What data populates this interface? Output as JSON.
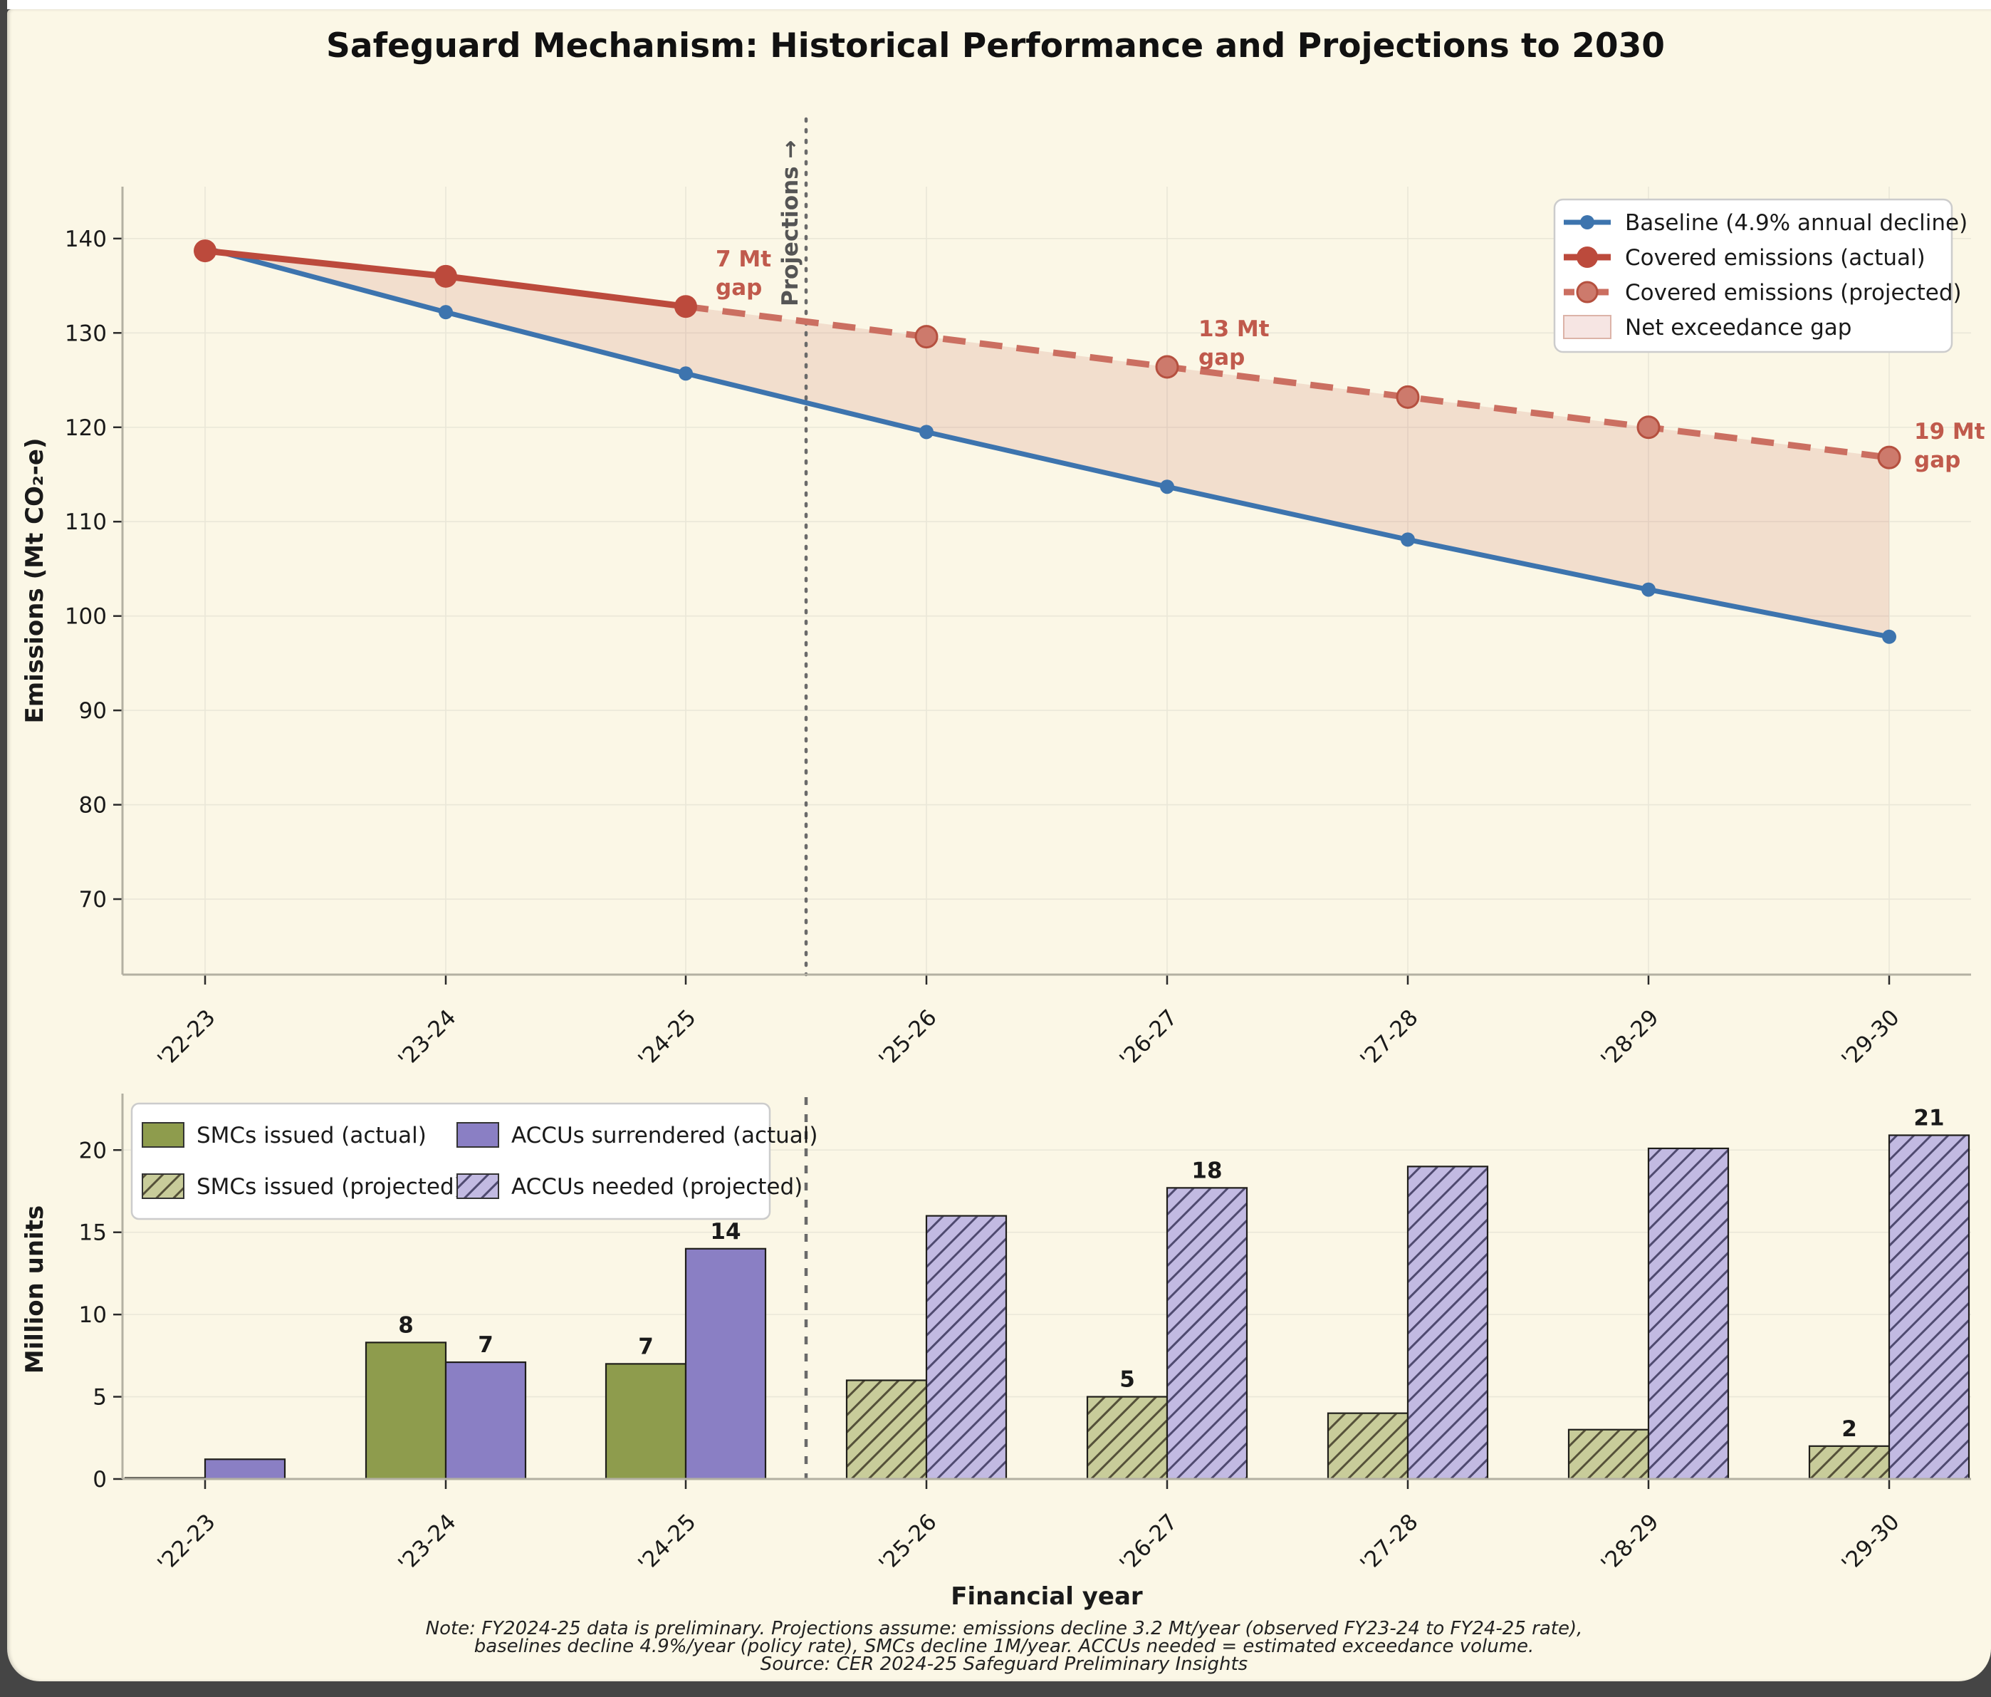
{
  "title": "Safeguard Mechanism: Historical Performance and Projections to 2030",
  "footer": {
    "line1": "Note: FY2024-25 data is preliminary. Projections assume: emissions decline 3.2 Mt/year (observed FY23-24 to FY24-25 rate),",
    "line2": "baselines decline 4.9%/year (policy rate), SMCs decline 1M/year. ACCUs needed = estimated exceedance volume.",
    "line3": "Source: CER 2024-25 Safeguard Preliminary Insights"
  },
  "colors": {
    "background": "#fbf7e6",
    "frame": "#454545",
    "top_strip": "#ffffff",
    "baseline_blue": "#3d74ae",
    "emissions_red": "#bc4a3c",
    "projected_red": "#cb6f61",
    "gap_fill": "rgba(188,74,60,0.14)",
    "smc_green": "#8e9c4d",
    "smc_green_projected": "#c8cc9a",
    "accu_purple": "#8a7fc4",
    "accu_purple_projected": "#c2bae2",
    "hatch_green": "#555139",
    "hatch_purple": "#4f4a70",
    "bar_edge": "#1f1e1a",
    "grid": "#eae7d8",
    "spine": "#b3b0a2",
    "tick": "#2a2a2a",
    "divider": "#6a6a6a",
    "annotation_red": "#c05a4c",
    "projections_gray": "#555555",
    "legend_bg": "#ffffff",
    "legend_border": "#cccccc",
    "text": "#1a1a1a"
  },
  "chart_data": [
    {
      "type": "line",
      "panel": "top",
      "ylabel": "Emissions (Mt CO₂-e)",
      "categories": [
        "'22-23",
        "'23-24",
        "'24-25",
        "'25-26",
        "'26-27",
        "'27-28",
        "'28-29",
        "'29-30"
      ],
      "ylim": [
        62,
        145.5
      ],
      "yticks": [
        70,
        80,
        90,
        100,
        110,
        120,
        130,
        140
      ],
      "grid": true,
      "legend_position": "upper right",
      "series": [
        {
          "name": "Baseline (4.9% annual decline)",
          "line_style": "solid",
          "color_key": "baseline_blue",
          "values": [
            139.0,
            132.2,
            125.7,
            119.5,
            113.7,
            108.1,
            102.8,
            97.8
          ]
        },
        {
          "name": "Covered emissions (actual)",
          "line_style": "solid",
          "color_key": "emissions_red",
          "values": [
            138.7,
            136.0,
            132.8,
            null,
            null,
            null,
            null,
            null
          ]
        },
        {
          "name": "Covered emissions (projected)",
          "line_style": "dashed",
          "color_key": "projected_red",
          "values": [
            null,
            null,
            132.8,
            129.6,
            126.4,
            123.2,
            120.0,
            116.8
          ]
        }
      ],
      "fill_label": "Net exceedance gap",
      "divider_between": [
        "'24-25",
        "'25-26"
      ],
      "projections_label": "Projections →",
      "annotations": [
        {
          "line1": "7 Mt",
          "line2": "gap"
        },
        {
          "line1": "13 Mt",
          "line2": "gap"
        },
        {
          "line1": "19 Mt",
          "line2": "gap"
        }
      ]
    },
    {
      "type": "bar",
      "panel": "bottom",
      "ylabel": "Million units",
      "xlabel": "Financial year",
      "categories": [
        "'22-23",
        "'23-24",
        "'24-25",
        "'25-26",
        "'26-27",
        "'27-28",
        "'28-29",
        "'29-30"
      ],
      "ylim": [
        0,
        23
      ],
      "yticks": [
        0,
        5,
        10,
        15,
        20
      ],
      "divider_between": [
        "'24-25",
        "'25-26"
      ],
      "series": [
        {
          "name": "SMCs issued (actual)",
          "color_key": "smc_green",
          "hatch": false,
          "side": "left",
          "values": [
            0.05,
            8.3,
            7.0,
            null,
            null,
            null,
            null,
            null
          ],
          "labels": [
            null,
            "8",
            "7",
            null,
            null,
            null,
            null,
            null
          ]
        },
        {
          "name": "SMCs issued (projected)",
          "color_key": "smc_green_projected",
          "hatch": true,
          "side": "left",
          "values": [
            null,
            null,
            null,
            6.0,
            5.0,
            4.0,
            3.0,
            2.0
          ],
          "labels": [
            null,
            null,
            null,
            null,
            "5",
            null,
            null,
            "2"
          ]
        },
        {
          "name": "ACCUs surrendered (actual)",
          "color_key": "accu_purple",
          "hatch": false,
          "side": "right",
          "values": [
            1.2,
            7.1,
            14.0,
            null,
            null,
            null,
            null,
            null
          ],
          "labels": [
            null,
            "7",
            "14",
            null,
            null,
            null,
            null,
            null
          ]
        },
        {
          "name": "ACCUs needed (projected)",
          "color_key": "accu_purple_projected",
          "hatch": true,
          "side": "right",
          "values": [
            null,
            null,
            null,
            16.0,
            17.7,
            19.0,
            20.1,
            20.9
          ],
          "labels": [
            null,
            null,
            null,
            null,
            "18",
            null,
            null,
            "21"
          ]
        }
      ]
    }
  ]
}
